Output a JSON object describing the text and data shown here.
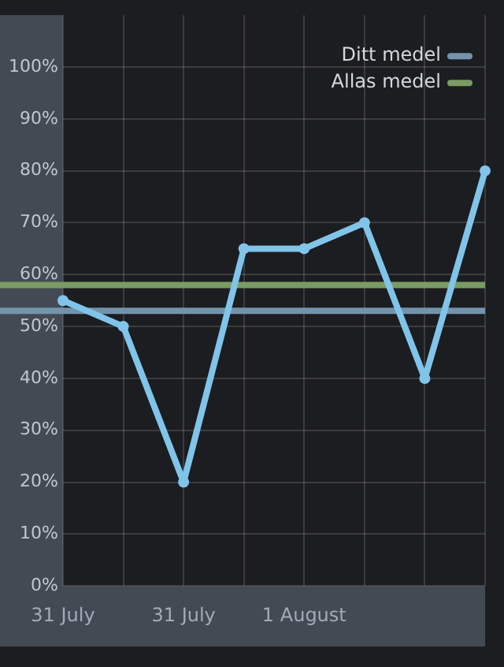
{
  "chart_data": {
    "type": "line",
    "categories": [
      "31 July",
      null,
      "31 July",
      null,
      "1 August",
      null,
      null,
      null
    ],
    "series": [
      {
        "color": "#80c4ea",
        "values": [
          55,
          50,
          20,
          65,
          65,
          70,
          40,
          80
        ]
      }
    ],
    "ylim": [
      0,
      110
    ],
    "yticks": [
      {
        "value": 0,
        "label": "0%"
      },
      {
        "value": 10,
        "label": "10%"
      },
      {
        "value": 20,
        "label": "20%"
      },
      {
        "value": 30,
        "label": "30%"
      },
      {
        "value": 40,
        "label": "40%"
      },
      {
        "value": 50,
        "label": "50%"
      },
      {
        "value": 60,
        "label": "60%"
      },
      {
        "value": 70,
        "label": "70%"
      },
      {
        "value": 80,
        "label": "80%"
      },
      {
        "value": 90,
        "label": "90%"
      },
      {
        "value": 100,
        "label": "100%"
      }
    ],
    "ref_lines": [
      {
        "axis": "y",
        "value": 53,
        "label": "Ditt medel",
        "color": "#7393ad"
      },
      {
        "axis": "y",
        "value": 58,
        "label": "Allas medel",
        "color": "#7a9c62"
      }
    ],
    "grid": true,
    "legend": "top right",
    "marker": "circle",
    "line_style": "solid"
  }
}
